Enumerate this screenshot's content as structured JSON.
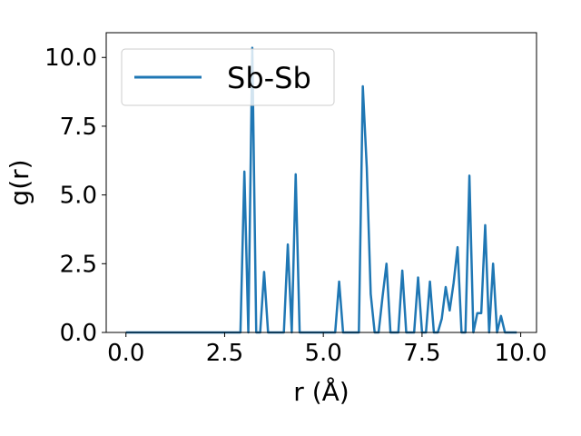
{
  "chart_data": {
    "type": "line",
    "xlabel": "r (Å)",
    "ylabel": "g(r)",
    "xlim": [
      -0.5,
      10.4
    ],
    "ylim": [
      0.0,
      10.9
    ],
    "x_ticks": [
      {
        "value": 0.0,
        "label": "0.0"
      },
      {
        "value": 2.5,
        "label": "2.5"
      },
      {
        "value": 5.0,
        "label": "5.0"
      },
      {
        "value": 7.5,
        "label": "7.5"
      },
      {
        "value": 10.0,
        "label": "10.0"
      }
    ],
    "y_ticks": [
      {
        "value": 0.0,
        "label": "0.0"
      },
      {
        "value": 2.5,
        "label": "2.5"
      },
      {
        "value": 5.0,
        "label": "5.0"
      },
      {
        "value": 7.5,
        "label": "7.5"
      },
      {
        "value": 10.0,
        "label": "10.0"
      }
    ],
    "grid": false,
    "legend_position": "top-left",
    "series": [
      {
        "name": "Sb-Sb",
        "color": "#1f77b4",
        "x": [
          0.0,
          2.9,
          3.0,
          3.1,
          3.2,
          3.3,
          3.4,
          3.5,
          3.6,
          3.7,
          4.0,
          4.1,
          4.2,
          4.3,
          4.4,
          5.2,
          5.3,
          5.4,
          5.5,
          5.9,
          6.0,
          6.1,
          6.2,
          6.3,
          6.4,
          6.5,
          6.6,
          6.7,
          6.8,
          6.9,
          7.0,
          7.1,
          7.3,
          7.4,
          7.5,
          7.6,
          7.7,
          7.8,
          7.9,
          8.0,
          8.1,
          8.2,
          8.3,
          8.4,
          8.5,
          8.6,
          8.7,
          8.8,
          8.9,
          9.0,
          9.1,
          9.2,
          9.3,
          9.4,
          9.5,
          9.6,
          9.7,
          9.8,
          9.9
        ],
        "y": [
          0.0,
          0.0,
          5.85,
          0.0,
          10.35,
          0.0,
          0.0,
          2.2,
          0.0,
          0.0,
          0.0,
          3.2,
          0.0,
          5.75,
          0.0,
          0.0,
          0.0,
          1.85,
          0.0,
          0.0,
          8.95,
          6.0,
          1.4,
          0.0,
          0.0,
          1.3,
          2.5,
          0.0,
          0.0,
          0.0,
          2.25,
          0.0,
          0.0,
          2.0,
          0.0,
          0.0,
          1.85,
          0.0,
          0.0,
          0.5,
          1.65,
          0.8,
          1.8,
          3.1,
          0.0,
          0.0,
          5.7,
          0.0,
          0.7,
          0.7,
          3.9,
          0.0,
          2.5,
          0.0,
          0.6,
          0.0,
          0.0,
          0.0,
          0.0
        ]
      }
    ]
  }
}
